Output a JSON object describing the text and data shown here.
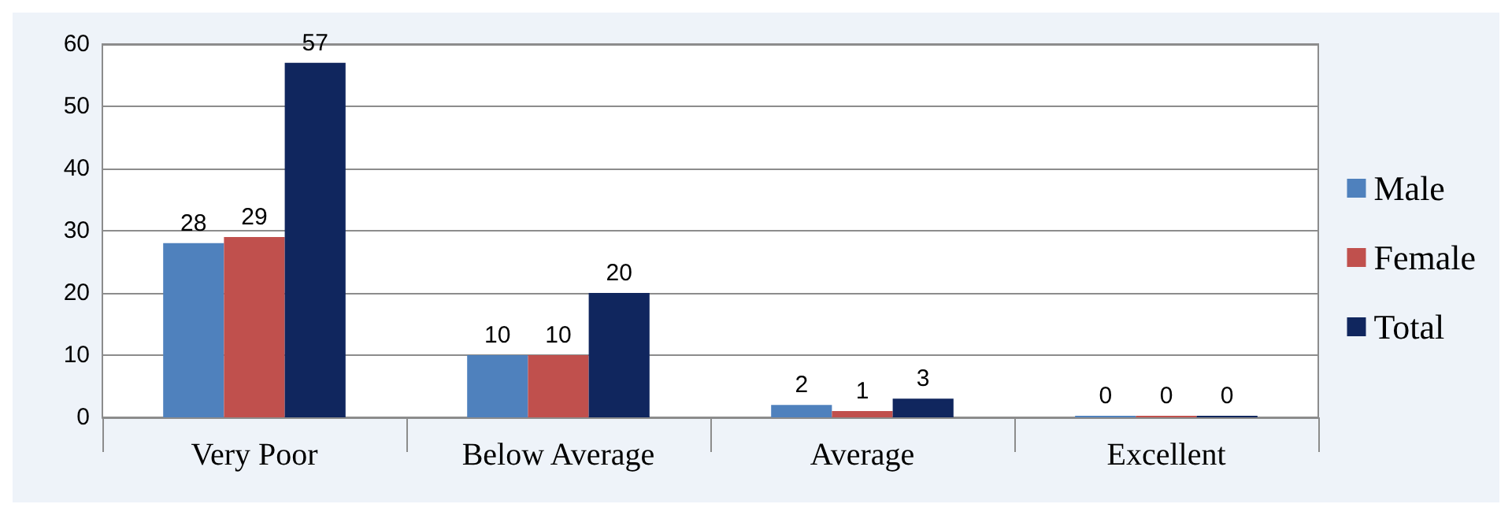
{
  "chart_data": {
    "type": "bar",
    "categories": [
      "Very Poor",
      "Below Average",
      "Average",
      "Excellent"
    ],
    "series": [
      {
        "name": "Male",
        "color": "#4f81bd",
        "values": [
          28,
          10,
          2,
          0
        ]
      },
      {
        "name": "Female",
        "color": "#c0504d",
        "values": [
          29,
          10,
          1,
          0
        ]
      },
      {
        "name": "Total",
        "color": "#10265e",
        "values": [
          57,
          20,
          3,
          0
        ]
      }
    ],
    "ylim": [
      0,
      60
    ],
    "yticks": [
      0,
      10,
      20,
      30,
      40,
      50,
      60
    ],
    "grid": "y",
    "legend": "right",
    "data_labels": true
  }
}
